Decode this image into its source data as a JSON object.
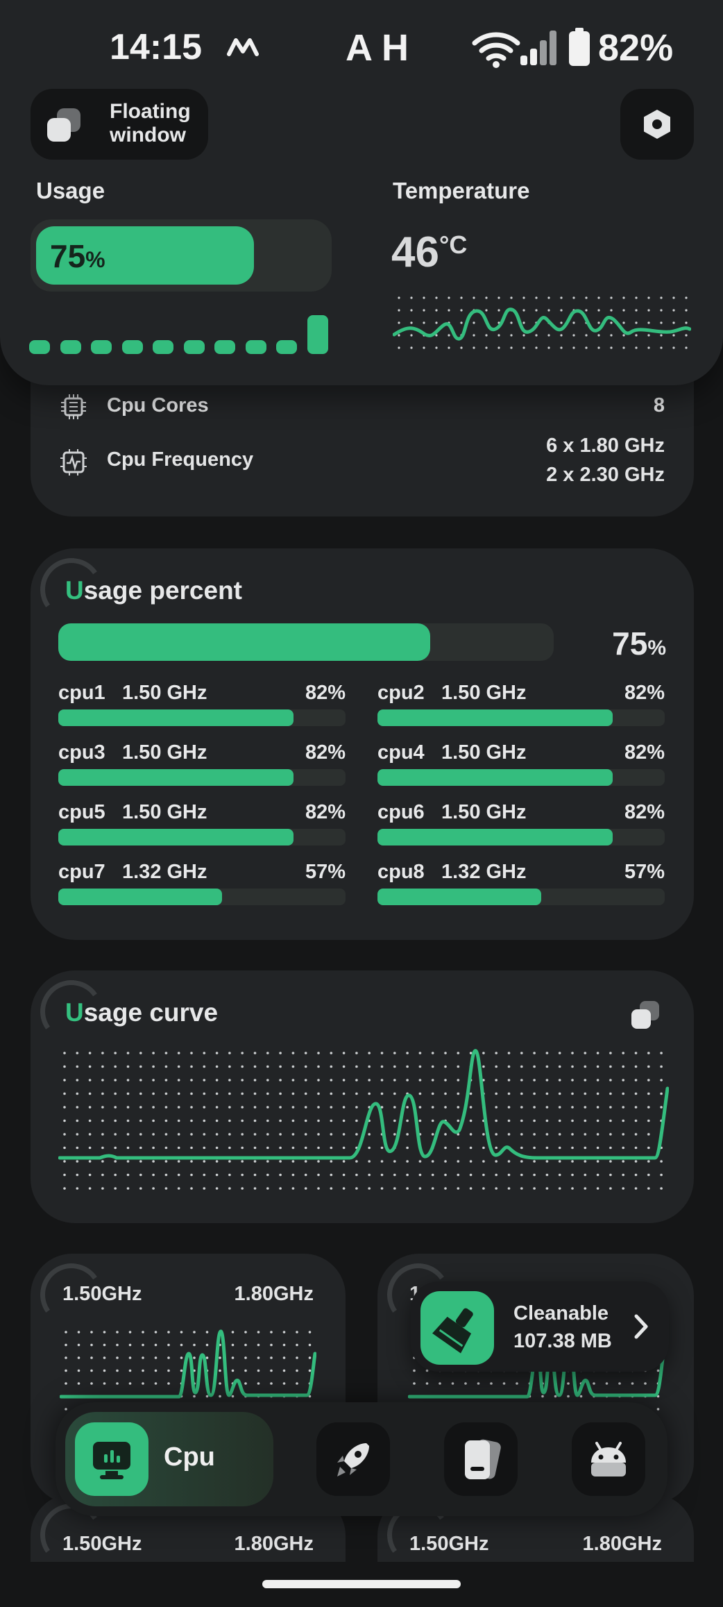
{
  "status_bar": {
    "time": "14:15",
    "carrier_icon": "m-logo-icon",
    "center_text": "A H",
    "battery_pct": "82%"
  },
  "header": {
    "floating_window_label_1": "Floating",
    "floating_window_label_2": "window",
    "usage_title": "Usage",
    "usage_value": "75",
    "usage_unit": "%",
    "usage_fraction": 0.75,
    "temperature_title": "Temperature",
    "temperature_value": "46",
    "temperature_unit": "°C"
  },
  "info": {
    "cores_label": "Cpu Cores",
    "cores_value": "8",
    "freq_label": "Cpu Frequency",
    "freq_line1": "6 x 1.80 GHz",
    "freq_line2": "2 x 2.30 GHz"
  },
  "usage_percent": {
    "title_first": "U",
    "title_rest": "sage percent",
    "total_value": "75",
    "total_unit": "%",
    "total_fraction": 0.75,
    "cores": [
      {
        "name": "cpu1",
        "freq": "1.50 GHz",
        "pct": "82%",
        "fraction": 0.82
      },
      {
        "name": "cpu2",
        "freq": "1.50 GHz",
        "pct": "82%",
        "fraction": 0.82
      },
      {
        "name": "cpu3",
        "freq": "1.50 GHz",
        "pct": "82%",
        "fraction": 0.82
      },
      {
        "name": "cpu4",
        "freq": "1.50 GHz",
        "pct": "82%",
        "fraction": 0.82
      },
      {
        "name": "cpu5",
        "freq": "1.50 GHz",
        "pct": "82%",
        "fraction": 0.82
      },
      {
        "name": "cpu6",
        "freq": "1.50 GHz",
        "pct": "82%",
        "fraction": 0.82
      },
      {
        "name": "cpu7",
        "freq": "1.32 GHz",
        "pct": "57%",
        "fraction": 0.57
      },
      {
        "name": "cpu8",
        "freq": "1.32 GHz",
        "pct": "57%",
        "fraction": 0.57
      }
    ]
  },
  "usage_curve": {
    "title_first": "U",
    "title_rest": "sage curve"
  },
  "freq_cards": {
    "card1_left": "1.50GHz",
    "card1_right": "1.80GHz",
    "card2_left": "1",
    "card3_left": "1.50GHz",
    "card3_right": "1.80GHz",
    "card4_left": "1.50GHz",
    "card4_right": "1.80GHz"
  },
  "cleanable": {
    "label": "Cleanable",
    "size": "107.38 MB"
  },
  "bottom_nav": {
    "active_label": "Cpu"
  },
  "colors": {
    "accent": "#34bd7e",
    "background": "#151617",
    "card": "#222426"
  }
}
